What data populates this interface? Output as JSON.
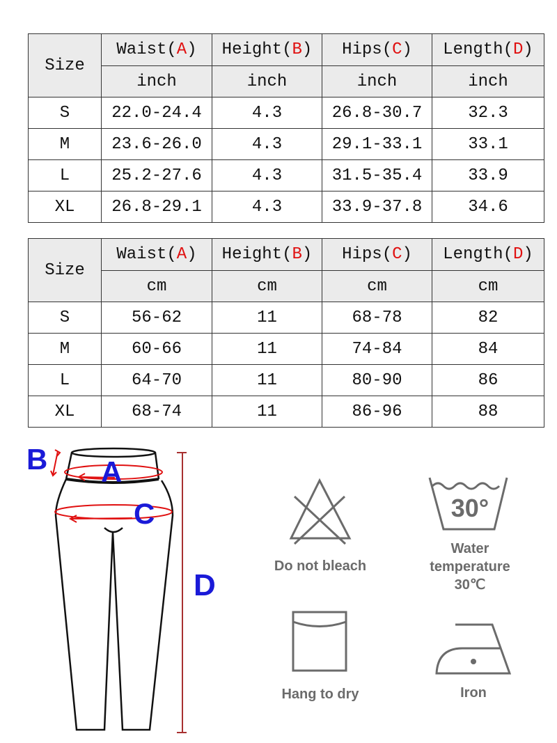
{
  "tables": [
    {
      "unit": "inch",
      "size_label": "Size",
      "headers": [
        {
          "name": "Waist",
          "letter": "A"
        },
        {
          "name": "Height",
          "letter": "B"
        },
        {
          "name": "Hips",
          "letter": "C"
        },
        {
          "name": "Length",
          "letter": "D"
        }
      ],
      "rows": [
        [
          "S",
          "22.0-24.4",
          "4.3",
          "26.8-30.7",
          "32.3"
        ],
        [
          "M",
          "23.6-26.0",
          "4.3",
          "29.1-33.1",
          "33.1"
        ],
        [
          "L",
          "25.2-27.6",
          "4.3",
          "31.5-35.4",
          "33.9"
        ],
        [
          "XL",
          "26.8-29.1",
          "4.3",
          "33.9-37.8",
          "34.6"
        ]
      ]
    },
    {
      "unit": "cm",
      "size_label": "Size",
      "headers": [
        {
          "name": "Waist",
          "letter": "A"
        },
        {
          "name": "Height",
          "letter": "B"
        },
        {
          "name": "Hips",
          "letter": "C"
        },
        {
          "name": "Length",
          "letter": "D"
        }
      ],
      "rows": [
        [
          "S",
          "56-62",
          "11",
          "68-78",
          "82"
        ],
        [
          "M",
          "60-66",
          "11",
          "74-84",
          "84"
        ],
        [
          "L",
          "64-70",
          "11",
          "80-90",
          "86"
        ],
        [
          "XL",
          "68-74",
          "11",
          "86-96",
          "88"
        ]
      ]
    }
  ],
  "diagram": {
    "labels": {
      "a": "A",
      "b": "B",
      "c": "C",
      "d": "D"
    },
    "accent_blue": "#1a1ad8",
    "accent_red": "#e01010"
  },
  "care": {
    "no_bleach": "Do not bleach",
    "wash_temp_icon": "30°",
    "wash_line1": "Water",
    "wash_line2": "temperature",
    "wash_line3": "30℃",
    "hang": "Hang to dry",
    "iron": "Iron"
  }
}
